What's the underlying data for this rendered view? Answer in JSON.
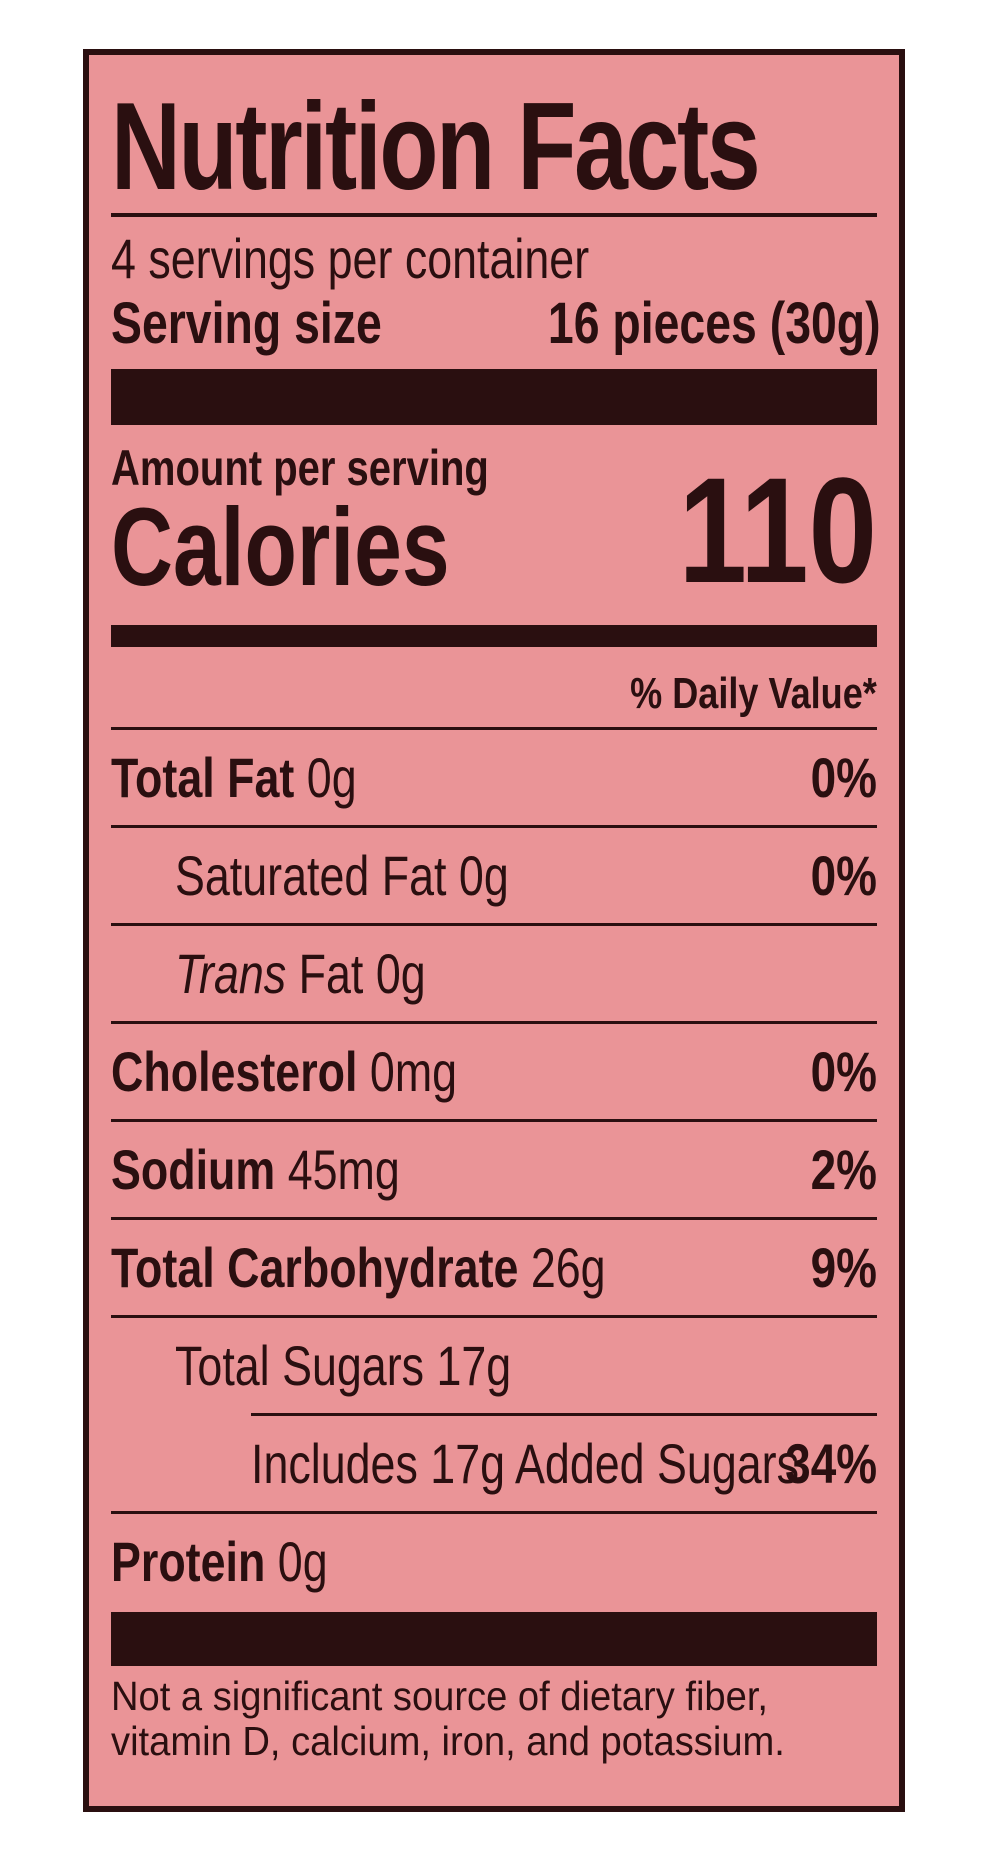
{
  "label": {
    "title": "Nutrition Facts",
    "servings_per_container": "4 servings per container",
    "serving_size_label": "Serving size",
    "serving_size_value": "16 pieces (30g)",
    "amount_per_serving": "Amount per serving",
    "calories_label": "Calories",
    "calories_value": "110",
    "daily_value_header": "% Daily Value*",
    "nutrients": [
      {
        "name": "Total Fat",
        "amount": "0g",
        "dv": "0%"
      },
      {
        "name": "Saturated Fat",
        "amount": "0g",
        "dv": "0%"
      },
      {
        "name": "Trans",
        "name_suffix": "Fat",
        "amount": "0g",
        "dv": ""
      },
      {
        "name": "Cholesterol",
        "amount": "0mg",
        "dv": "0%"
      },
      {
        "name": "Sodium",
        "amount": "45mg",
        "dv": "2%"
      },
      {
        "name": "Total Carbohydrate",
        "amount": "26g",
        "dv": "9%"
      },
      {
        "name": "Total Sugars",
        "amount": "17g",
        "dv": ""
      },
      {
        "name": "Includes 17g Added Sugars",
        "amount": "",
        "dv": "34%"
      },
      {
        "name": "Protein",
        "amount": "0g",
        "dv": ""
      }
    ],
    "footnote_line1": "Not a significant source of dietary fiber,",
    "footnote_line2": "vitamin D, calcium, iron, and potassium."
  },
  "colors": {
    "background": "#ea9497",
    "ink": "#2a0f10"
  }
}
